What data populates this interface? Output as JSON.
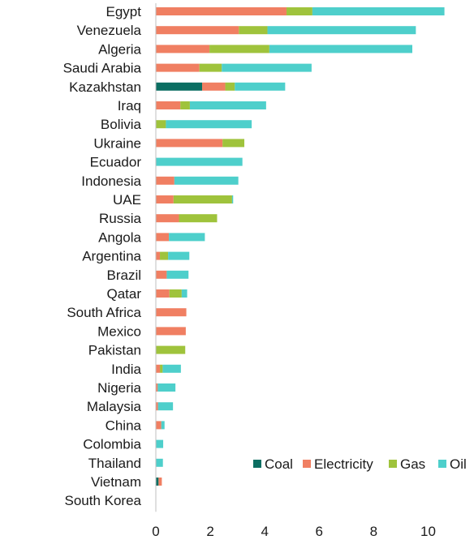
{
  "chart_data": {
    "type": "bar",
    "orientation": "horizontal",
    "stacked": true,
    "categories": [
      "Egypt",
      "Venezuela",
      "Algeria",
      "Saudi Arabia",
      "Kazakhstan",
      "Iraq",
      "Bolivia",
      "Ukraine",
      "Ecuador",
      "Indonesia",
      "UAE",
      "Russia",
      "Angola",
      "Argentina",
      "Brazil",
      "Qatar",
      "South Africa",
      "Mexico",
      "Pakistan",
      "India",
      "Nigeria",
      "Malaysia",
      "China",
      "Colombia",
      "Thailand",
      "Vietnam",
      "South Korea"
    ],
    "series": [
      {
        "name": "Coal",
        "color": "#0b6e62",
        "values": [
          0,
          0,
          0,
          0,
          1.7,
          0,
          0,
          0,
          0,
          0,
          0,
          0,
          0,
          0,
          0,
          0,
          0,
          0,
          0,
          0,
          0,
          0,
          0,
          0,
          0,
          0.1,
          0
        ]
      },
      {
        "name": "Electricity",
        "color": "#f07f62",
        "values": [
          4.8,
          3.05,
          1.97,
          1.6,
          0.85,
          0.9,
          0,
          2.45,
          0,
          0.68,
          0.65,
          0.85,
          0.48,
          0.15,
          0.4,
          0.5,
          1.12,
          1.1,
          0,
          0.15,
          0.07,
          0.08,
          0.2,
          0,
          0,
          0.12,
          0
        ]
      },
      {
        "name": "Gas",
        "color": "#9fc33c",
        "values": [
          0.95,
          1.05,
          2.2,
          0.82,
          0.35,
          0.35,
          0.37,
          0.8,
          0,
          0,
          2.15,
          1.4,
          0,
          0.3,
          0,
          0.45,
          0,
          0,
          1.08,
          0.1,
          0,
          0,
          0,
          0,
          0,
          0,
          0
        ]
      },
      {
        "name": "Oil",
        "color": "#4ecfcb",
        "values": [
          4.85,
          5.45,
          5.25,
          3.3,
          1.85,
          2.8,
          3.15,
          0,
          3.18,
          2.35,
          0.04,
          0,
          1.32,
          0.78,
          0.8,
          0.2,
          0,
          0,
          0,
          0.67,
          0.65,
          0.55,
          0.12,
          0.27,
          0.26,
          0,
          0
        ]
      }
    ],
    "xlim": [
      0,
      11
    ],
    "xticks": [
      0,
      2,
      4,
      6,
      8,
      10
    ],
    "xtick_labels": [
      "0",
      "2",
      "4",
      "6",
      "8",
      "10"
    ],
    "title": "",
    "xlabel": "",
    "ylabel": "",
    "grid": false,
    "legend_position": "bottom-right"
  }
}
